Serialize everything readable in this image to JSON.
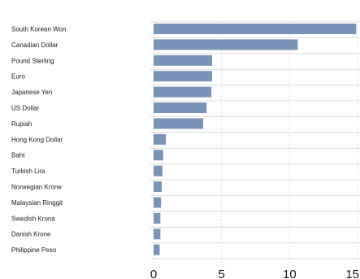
{
  "chart_data": {
    "type": "bar",
    "orientation": "horizontal",
    "title": "",
    "xlabel": "",
    "ylabel": "",
    "categories": [
      "South Korean Won",
      "Canadian Dollar",
      "Pound Sterling",
      "Euro",
      "Japanese Yen",
      "US Dollar",
      "Rupiah",
      "Hong Kong Dollar",
      "Baht",
      "Turkish Lira",
      "Norwegian Krone",
      "Malaysian Ringgit",
      "Swedish Krona",
      "Danish Krone",
      "Philippine Peso"
    ],
    "values": [
      14.9,
      10.6,
      4.3,
      4.3,
      4.25,
      3.9,
      3.65,
      0.9,
      0.7,
      0.65,
      0.6,
      0.55,
      0.5,
      0.5,
      0.45
    ],
    "xlim": [
      0,
      15
    ],
    "xticks": [
      0,
      5,
      10,
      15
    ],
    "grid": "vertical dotted",
    "bar_color": "#7a93b8"
  }
}
